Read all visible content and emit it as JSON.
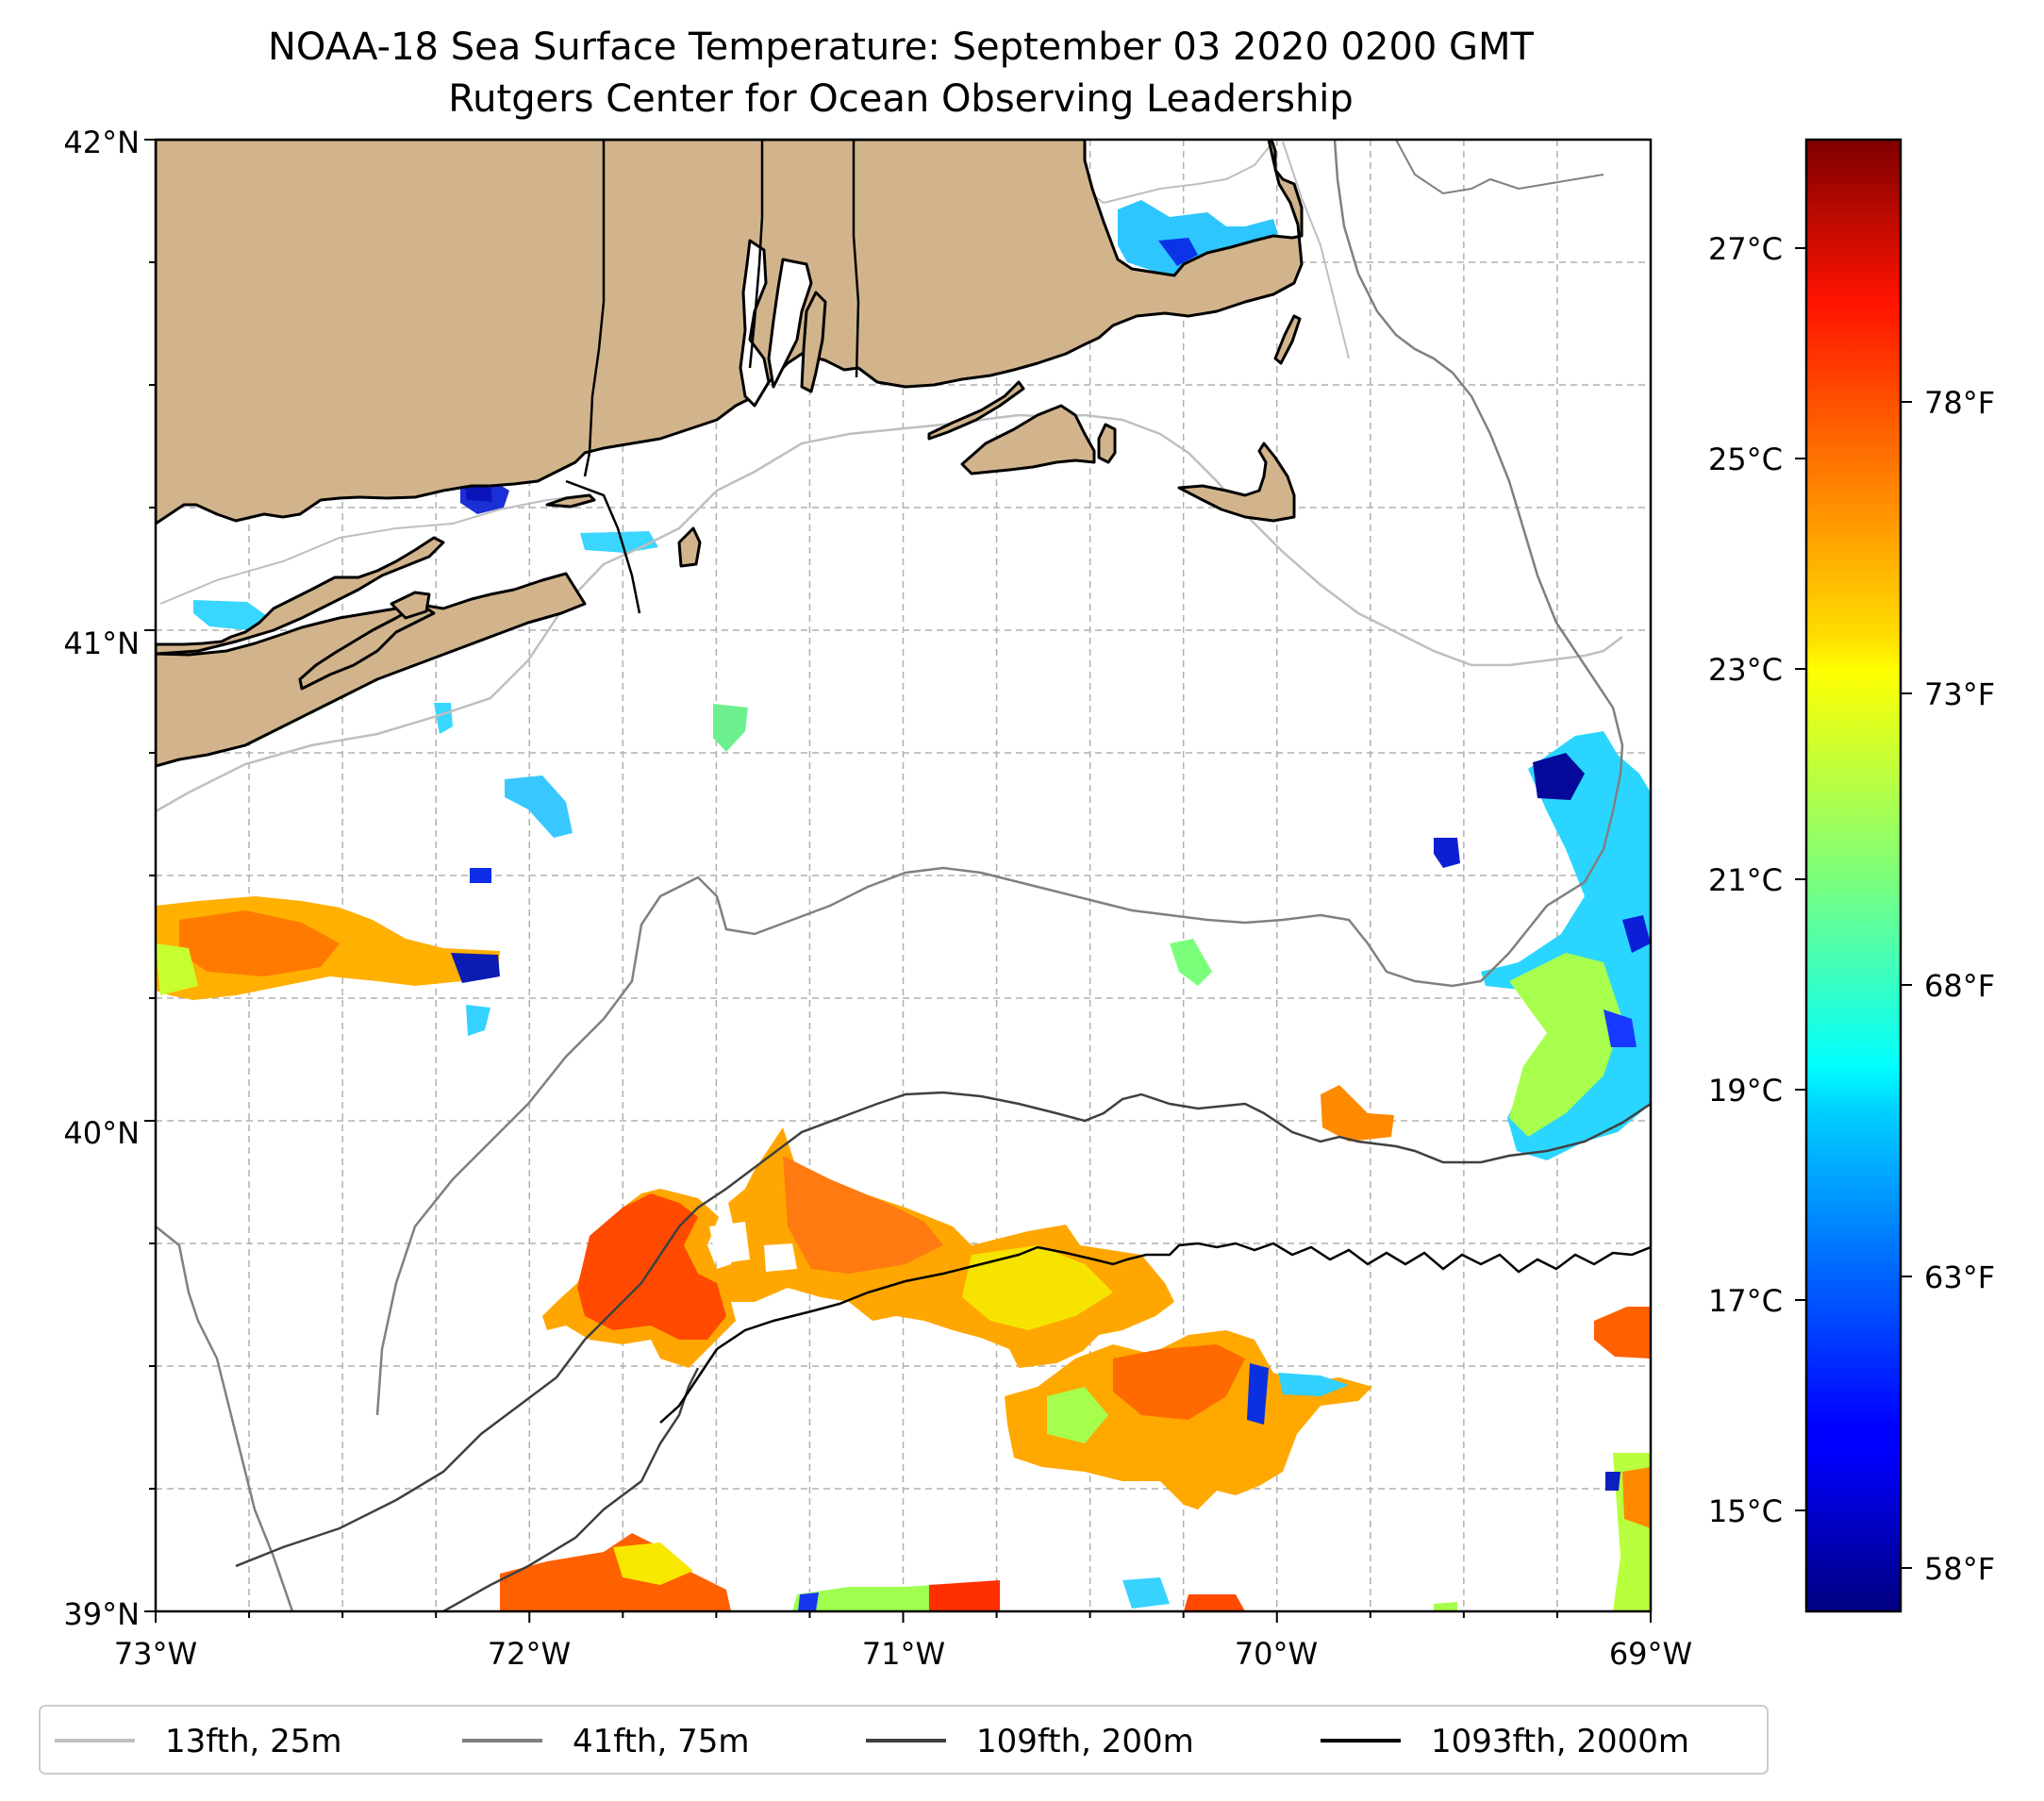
{
  "title": {
    "line1": "NOAA-18 Sea Surface Temperature: September 03 2020 0200 GMT",
    "line2": "Rutgers Center for Ocean Observing Leadership"
  },
  "map": {
    "lat_ticks": [
      "42°N",
      "41°N",
      "40°N",
      "39°N"
    ],
    "lon_ticks": [
      "73°W",
      "72°W",
      "71°W",
      "70°W",
      "69°W"
    ],
    "lon_range": [
      -73,
      -69
    ],
    "lat_range": [
      39,
      42
    ],
    "land_color": "#d2b48c",
    "ocean_color": "#ffffff",
    "features": [
      "Long Island",
      "Rhode Island",
      "Massachusetts",
      "Cape Cod",
      "Martha's Vineyard",
      "Nantucket",
      "Block Island"
    ]
  },
  "colorbar": {
    "colormap": "jet",
    "celsius_ticks": [
      "27°C",
      "25°C",
      "23°C",
      "21°C",
      "19°C",
      "17°C",
      "15°C"
    ],
    "fahrenheit_ticks": [
      "78°F",
      "73°F",
      "68°F",
      "63°F",
      "58°F"
    ],
    "range_c": [
      14.0,
      28.0
    ]
  },
  "legend": {
    "items": [
      {
        "label": "13fth, 25m",
        "color": "#bfbfbf"
      },
      {
        "label": "41fth, 75m",
        "color": "#808080"
      },
      {
        "label": "109fth, 200m",
        "color": "#404040"
      },
      {
        "label": "1093fth, 2000m",
        "color": "#000000"
      }
    ]
  }
}
